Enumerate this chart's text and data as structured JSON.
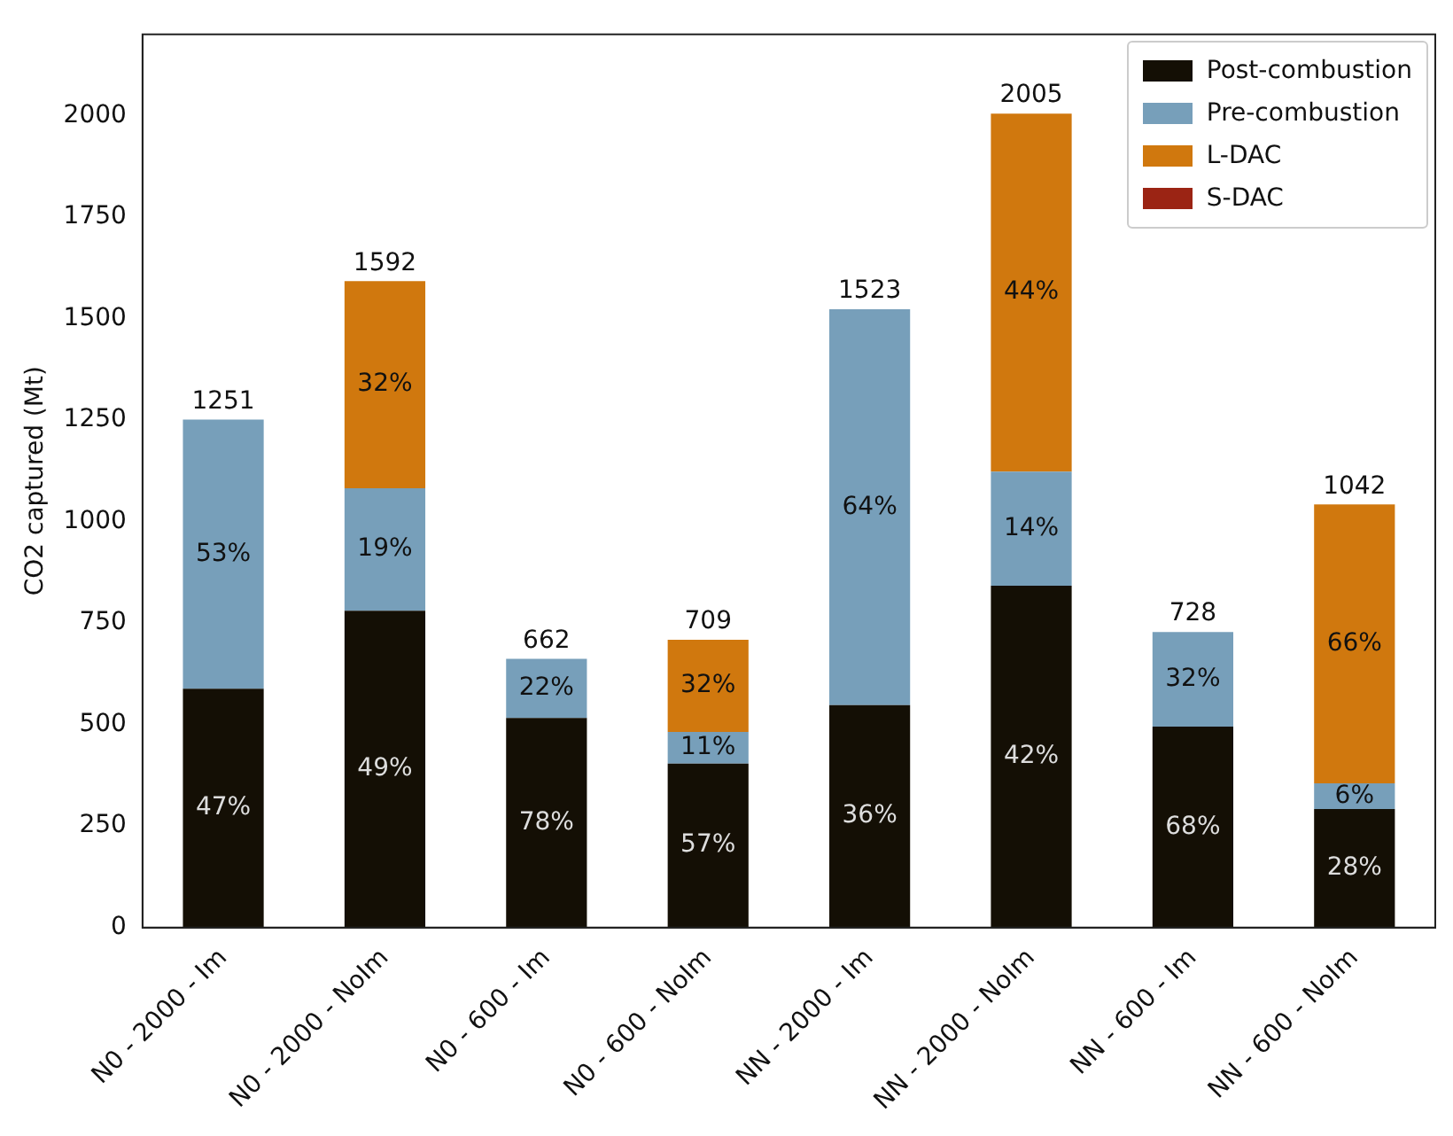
{
  "chart_data": {
    "type": "bar",
    "stacked": true,
    "ylabel": "CO2 captured (Mt)",
    "categories": [
      "N0 - 2000 - Im",
      "N0 - 2000 - NoIm",
      "N0 - 600 - Im",
      "N0 - 600 - NoIm",
      "NN - 2000 - Im",
      "NN - 2000 - NoIm",
      "NN - 600 - Im",
      "NN - 600 - NoIm"
    ],
    "series": [
      {
        "name": "Post-combustion",
        "color": "#140f05",
        "values": [
          588,
          780,
          516,
          404,
          548,
          842,
          495,
          292
        ]
      },
      {
        "name": "Pre-combustion",
        "color": "#779fba",
        "values": [
          663,
          302,
          146,
          78,
          975,
          281,
          233,
          63
        ]
      },
      {
        "name": "L-DAC",
        "color": "#d0780e",
        "values": [
          0,
          510,
          0,
          227,
          0,
          882,
          0,
          687
        ]
      },
      {
        "name": "S-DAC",
        "color": "#9b2414",
        "values": [
          0,
          0,
          0,
          0,
          0,
          0,
          0,
          0
        ]
      }
    ],
    "totals": [
      "1251",
      "1592",
      "662",
      "709",
      "1523",
      "2005",
      "728",
      "1042"
    ],
    "annotations": [
      "47%",
      "53%",
      "49%",
      "19%",
      "32%",
      "78%",
      "22%",
      "57%",
      "11%",
      "32%",
      "36%",
      "64%",
      "42%",
      "14%",
      "44%",
      "68%",
      "32%",
      "28%",
      "6%",
      "66%"
    ],
    "ylim": [
      0,
      2200
    ],
    "yticks": [
      0,
      250,
      500,
      750,
      1000,
      1250,
      1500,
      1750,
      2000
    ],
    "grid": false,
    "legend": "top right"
  }
}
